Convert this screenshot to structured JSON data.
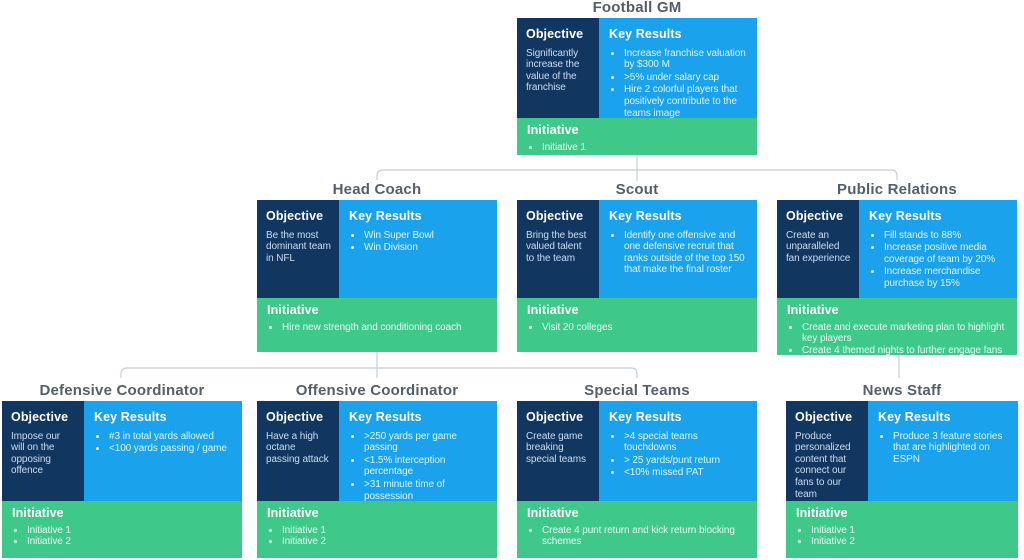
{
  "section_labels": {
    "objective": "Objective",
    "key_results": "Key Results",
    "initiative": "Initiative"
  },
  "colors": {
    "objective_bg": "#113761",
    "key_results_bg": "#1AA2EC",
    "initiative_bg": "#3EC98B",
    "title_text": "#545F6A",
    "connector": "#C5CEDA"
  },
  "cards": [
    {
      "id": "football-gm",
      "title": "Football GM",
      "objective": "Significantly increase the value of the franchise",
      "key_results": [
        "Increase franchise valuation by $300 M",
        ">5% under salary cap",
        "Hire 2 colorful players that positively contribute to the teams image"
      ],
      "initiatives": [
        "Initiative 1"
      ]
    },
    {
      "id": "head-coach",
      "title": "Head Coach",
      "objective": "Be the most dominant team in NFL",
      "key_results": [
        "Win Super Bowl",
        "Win Division"
      ],
      "initiatives": [
        "Hire new strength and conditioning coach"
      ]
    },
    {
      "id": "scout",
      "title": "Scout",
      "objective": "Bring the best valued talent to the team",
      "key_results": [
        "Identify one offensive and one defensive recruit that ranks outside of the top 150 that make the final roster"
      ],
      "initiatives": [
        "Visit 20 colleges"
      ]
    },
    {
      "id": "public-relations",
      "title": "Public Relations",
      "objective": "Create an unparalleled fan experience",
      "key_results": [
        "Fill stands to 88%",
        "Increase positive media coverage of team by 20%",
        "Increase merchandise purchase by 15%"
      ],
      "initiatives": [
        "Create and execute marketing plan to highlight key players",
        "Create 4 themed nights to further engage fans"
      ]
    },
    {
      "id": "defensive-coordinator",
      "title": "Defensive Coordinator",
      "objective": "Impose our will on the opposing offence",
      "key_results": [
        "#3 in total yards allowed",
        "<100 yards passing / game"
      ],
      "initiatives": [
        "Initiative 1",
        "Initiative 2"
      ]
    },
    {
      "id": "offensive-coordinator",
      "title": "Offensive Coordinator",
      "objective": "Have a high octane passing attack",
      "key_results": [
        ">250 yards per game passing",
        "<1.5% interception percentage",
        ">31 minute time of possession"
      ],
      "initiatives": [
        "Initiative 1",
        "Initiative 2"
      ]
    },
    {
      "id": "special-teams",
      "title": "Special Teams",
      "objective": "Create game breaking special teams",
      "key_results": [
        ">4 special teams touchdowns",
        "> 25 yards/punt return",
        "<10% missed PAT"
      ],
      "initiatives": [
        "Create 4 punt return and kick return blocking schemes"
      ]
    },
    {
      "id": "news-staff",
      "title": "News Staff",
      "objective": "Produce personalized content that connect our fans to our team",
      "key_results": [
        "Produce 3 feature stories that are highlighted on ESPN"
      ],
      "initiatives": [
        "Initiative 1",
        "Initiative 2"
      ]
    }
  ]
}
